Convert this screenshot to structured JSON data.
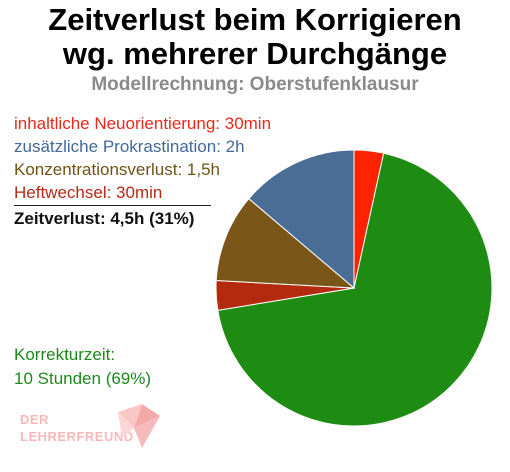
{
  "title_line1": "Zeitverlust beim Korrigieren",
  "title_line2": "wg. mehrerer Durchgänge",
  "subtitle": "Modellrechnung: Oberstufenklausur",
  "legend": [
    {
      "text": "inhaltliche Neuorientierung: 30min",
      "color": "#e8291c"
    },
    {
      "text": "zusätzliche Prokrastination: 2h",
      "color": "#43699b"
    },
    {
      "text": "Konzentrationsverlust: 1,5h",
      "color": "#6e5415"
    },
    {
      "text": "Heftwechsel: 30min",
      "color": "#b82a12"
    }
  ],
  "total_label": "Zeitverlust: 4,5h (31%)",
  "korrektur_line1": "Korrekturzeit:",
  "korrektur_line2": "10 Stunden (69%)",
  "logo": {
    "line1": "DER",
    "line2": "LEHRERFREUND"
  },
  "chart_data": {
    "type": "pie",
    "slices": [
      {
        "label": "inhaltliche Neuorientierung",
        "value": 0.5,
        "unit": "h",
        "color": "#ff2200"
      },
      {
        "label": "Korrekturzeit",
        "value": 10,
        "unit": "h",
        "color": "#1e8c12"
      },
      {
        "label": "Heftwechsel",
        "value": 0.5,
        "unit": "h",
        "color": "#b32a0e"
      },
      {
        "label": "Konzentrationsverlust",
        "value": 1.5,
        "unit": "h",
        "color": "#7a5718"
      },
      {
        "label": "zusätzliche Prokrastination",
        "value": 2,
        "unit": "h",
        "color": "#4a6d96"
      }
    ]
  }
}
